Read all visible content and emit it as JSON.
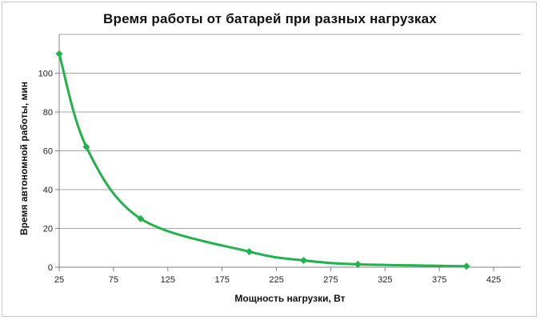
{
  "chart_data": {
    "type": "line",
    "title": "Время работы  от батарей  при разных  нагрузках",
    "xlabel": "Мощность нагрузки, Вт",
    "ylabel": "Время автономной работы, мин",
    "xlim": [
      25,
      450
    ],
    "ylim": [
      0,
      120
    ],
    "x_ticks": [
      25,
      75,
      125,
      175,
      225,
      275,
      325,
      375,
      425
    ],
    "y_ticks": [
      0,
      20,
      40,
      60,
      80,
      100
    ],
    "grid": "horizontal",
    "legend": "none",
    "line_color": "#22b14c",
    "series": [
      {
        "x": [
          25,
          50,
          100,
          200,
          250,
          300,
          400
        ],
        "y": [
          110,
          62,
          25,
          8,
          3.5,
          1.5,
          0.5
        ]
      }
    ]
  }
}
